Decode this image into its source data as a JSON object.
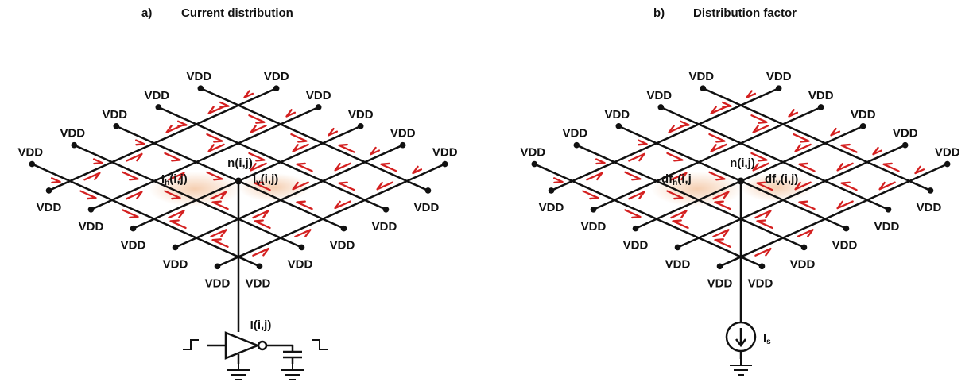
{
  "panel_a": {
    "tag": "a)",
    "title": "Current distribution",
    "supply_label": "VDD",
    "node_label": "n(i,j)",
    "horizontal_current": {
      "base": "I",
      "sub": "h",
      "tail": "(i,j)"
    },
    "vertical_current": {
      "base": "I",
      "sub": "v",
      "tail": "(i,j)"
    },
    "load_current": "I(i,j)"
  },
  "panel_b": {
    "tag": "b)",
    "title": "Distribution factor",
    "supply_label": "VDD",
    "node_label": "n(i,j)",
    "horizontal_factor": {
      "base": "df",
      "sub": "h",
      "tail": "(i,j"
    },
    "vertical_factor": {
      "base": "df",
      "sub": "v",
      "tail": "(i,j)"
    },
    "source_label": {
      "base": "I",
      "sub": "s"
    }
  },
  "colors": {
    "wire": "#111111",
    "arrow": "#d42020",
    "glow": "#f4c9a8",
    "text": "#111111"
  },
  "icons": [
    "ground-icon",
    "inverter-icon",
    "capacitor-icon",
    "current-source-icon",
    "step-signal-icon"
  ]
}
